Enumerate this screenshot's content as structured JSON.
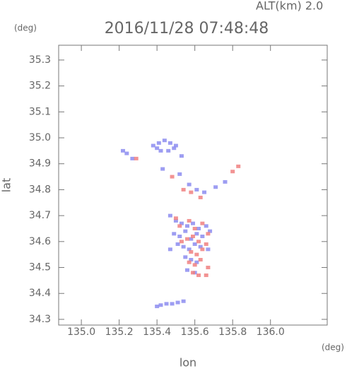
{
  "chart_data": {
    "type": "scatter",
    "title": "2016/11/28 07:48:48",
    "subtitle": "ALT(km) 2.0",
    "x_label": "lon",
    "y_label": "lat",
    "x_unit": "(deg)",
    "y_unit": "(deg)",
    "xlim": [
      134.88,
      136.3
    ],
    "ylim": [
      34.278,
      35.357
    ],
    "xticks": [
      {
        "value": 135,
        "label": "135.0"
      },
      135.2,
      135.4,
      135.6,
      135.8,
      {
        "value": 136,
        "label": "136.0"
      }
    ],
    "yticks": [
      34.3,
      34.4,
      34.5,
      34.6,
      34.7,
      34.8,
      34.9,
      {
        "value": 35,
        "label": "35.0"
      },
      35.1,
      35.2,
      35.3
    ],
    "series": [
      {
        "color": "#8c8cf0",
        "x": [
          135.38,
          135.41,
          135.44,
          135.47,
          135.5,
          135.42,
          135.46,
          135.49,
          135.53,
          135.4,
          135.22,
          135.24,
          135.27,
          135.43,
          135.52,
          135.57,
          135.61,
          135.65,
          135.71,
          135.76,
          135.47,
          135.5,
          135.53,
          135.56,
          135.59,
          135.62,
          135.66,
          135.49,
          135.52,
          135.55,
          135.58,
          135.61,
          135.64,
          135.68,
          135.51,
          135.54,
          135.57,
          135.6,
          135.63,
          135.67,
          135.55,
          135.58,
          135.61,
          135.56,
          135.6,
          135.47,
          135.4,
          135.42,
          135.45,
          135.48,
          135.51,
          135.54
        ],
        "y": [
          34.97,
          34.98,
          34.99,
          34.98,
          34.97,
          34.95,
          34.95,
          34.96,
          34.93,
          34.96,
          34.95,
          34.94,
          34.92,
          34.88,
          34.86,
          34.82,
          34.8,
          34.79,
          34.81,
          34.83,
          34.7,
          34.68,
          34.67,
          34.66,
          34.67,
          34.65,
          34.66,
          34.63,
          34.62,
          34.64,
          34.61,
          34.63,
          34.62,
          34.64,
          34.59,
          34.58,
          34.57,
          34.59,
          34.58,
          34.57,
          34.54,
          34.53,
          34.52,
          34.49,
          34.48,
          34.57,
          34.35,
          34.355,
          34.36,
          34.36,
          34.365,
          34.37
        ]
      },
      {
        "color": "#f08080",
        "x": [
          135.29,
          135.48,
          135.54,
          135.8,
          135.83,
          135.58,
          135.63,
          135.5,
          135.52,
          135.57,
          135.6,
          135.64,
          135.67,
          135.53,
          135.56,
          135.59,
          135.62,
          135.66,
          135.58,
          135.61,
          135.64,
          135.57,
          135.6,
          135.63,
          135.67,
          135.59,
          135.62,
          135.66
        ],
        "y": [
          34.92,
          34.85,
          34.8,
          34.87,
          34.89,
          34.79,
          34.77,
          34.69,
          34.66,
          34.68,
          34.65,
          34.67,
          34.63,
          34.6,
          34.61,
          34.62,
          34.6,
          34.59,
          34.56,
          34.55,
          34.57,
          34.52,
          34.51,
          34.53,
          34.5,
          34.48,
          34.47,
          34.47
        ]
      }
    ]
  }
}
